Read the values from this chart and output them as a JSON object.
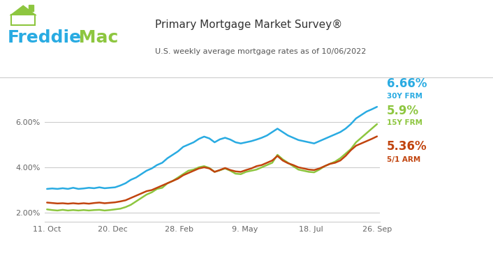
{
  "title1": "Primary Mortgage Market Survey®",
  "title2": "U.S. weekly average mortgage rates as of 10/06/2022",
  "color_30y": "#29abe2",
  "color_15y": "#8dc63f",
  "color_arm": "#c1440e",
  "color_freddie": "#29abe2",
  "color_mac": "#8dc63f",
  "label_30y": "6.66%",
  "label_15y": "5.9%",
  "label_arm": "5.36%",
  "sublabel_30y": "30Y FRM",
  "sublabel_15y": "15Y FRM",
  "sublabel_arm": "5/1 ARM",
  "yticks": [
    2.0,
    4.0,
    6.0
  ],
  "ytick_labels": [
    "2.00%",
    "4.00%",
    "6.00%"
  ],
  "xtick_labels": [
    "11. Oct",
    "20. Dec",
    "28. Feb",
    "9. May",
    "18. Jul",
    "26. Sep"
  ],
  "ylim": [
    1.6,
    7.5
  ],
  "background_color": "#ffffff",
  "rate_30y": [
    3.05,
    3.07,
    3.05,
    3.08,
    3.05,
    3.1,
    3.05,
    3.07,
    3.1,
    3.08,
    3.12,
    3.08,
    3.1,
    3.12,
    3.2,
    3.3,
    3.45,
    3.55,
    3.7,
    3.85,
    3.95,
    4.1,
    4.2,
    4.4,
    4.55,
    4.7,
    4.9,
    5.0,
    5.1,
    5.25,
    5.35,
    5.27,
    5.1,
    5.23,
    5.3,
    5.22,
    5.1,
    5.05,
    5.1,
    5.15,
    5.22,
    5.3,
    5.4,
    5.55,
    5.7,
    5.55,
    5.4,
    5.3,
    5.2,
    5.15,
    5.1,
    5.05,
    5.15,
    5.25,
    5.35,
    5.45,
    5.55,
    5.7,
    5.9,
    6.15,
    6.3,
    6.45,
    6.55,
    6.66
  ],
  "rate_15y": [
    2.15,
    2.12,
    2.1,
    2.13,
    2.1,
    2.12,
    2.1,
    2.12,
    2.1,
    2.12,
    2.13,
    2.1,
    2.12,
    2.15,
    2.18,
    2.25,
    2.35,
    2.5,
    2.65,
    2.8,
    2.9,
    3.05,
    3.1,
    3.3,
    3.4,
    3.55,
    3.7,
    3.85,
    3.9,
    4.0,
    4.05,
    3.97,
    3.8,
    3.87,
    3.95,
    3.85,
    3.72,
    3.7,
    3.8,
    3.85,
    3.9,
    4.0,
    4.1,
    4.2,
    4.55,
    4.35,
    4.2,
    4.05,
    3.9,
    3.85,
    3.8,
    3.78,
    3.9,
    4.05,
    4.15,
    4.25,
    4.4,
    4.6,
    4.8,
    5.1,
    5.3,
    5.5,
    5.7,
    5.9
  ],
  "rate_arm": [
    2.45,
    2.43,
    2.41,
    2.42,
    2.4,
    2.42,
    2.4,
    2.42,
    2.4,
    2.43,
    2.45,
    2.42,
    2.44,
    2.46,
    2.5,
    2.55,
    2.65,
    2.75,
    2.85,
    2.95,
    3.0,
    3.1,
    3.2,
    3.3,
    3.4,
    3.5,
    3.65,
    3.75,
    3.85,
    3.95,
    4.0,
    3.95,
    3.8,
    3.88,
    3.97,
    3.88,
    3.82,
    3.8,
    3.88,
    3.95,
    4.05,
    4.1,
    4.2,
    4.3,
    4.5,
    4.3,
    4.18,
    4.1,
    4.0,
    3.95,
    3.9,
    3.88,
    3.95,
    4.05,
    4.15,
    4.2,
    4.3,
    4.5,
    4.75,
    4.95,
    5.05,
    5.15,
    5.25,
    5.36
  ]
}
